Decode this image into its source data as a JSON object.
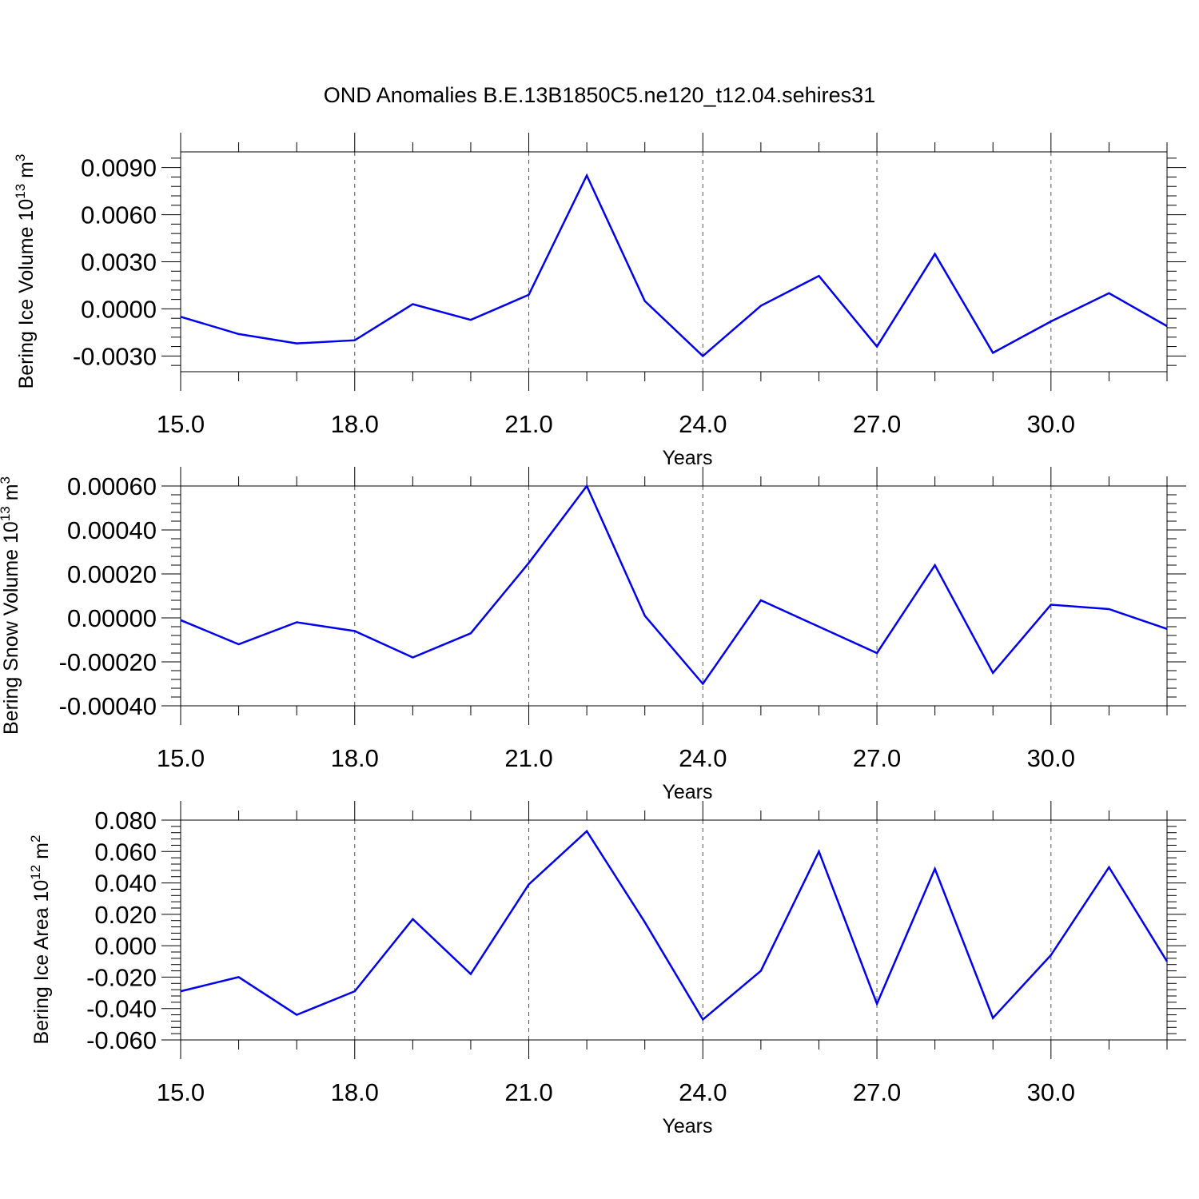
{
  "title": "OND Anomalies B.E.13B1850C5.ne120_t12.04.sehires31",
  "series_color": "#0000ee",
  "chart_data": [
    {
      "type": "line",
      "ylabel_main": "Bering Ice Volume 10",
      "ylabel_exp": "13",
      "ylabel_unit": " m",
      "ylabel_unit_exp": "3",
      "xlabel": "Years",
      "xlim": [
        15,
        32
      ],
      "ylim": [
        -0.004,
        0.01
      ],
      "xticks": [
        15,
        18,
        21,
        24,
        27,
        30
      ],
      "xtick_labels": [
        "15.0",
        "18.0",
        "21.0",
        "24.0",
        "27.0",
        "30.0"
      ],
      "yticks": [
        -0.003,
        0.0,
        0.003,
        0.006,
        0.009
      ],
      "ytick_labels": [
        "-0.0030",
        "0.0000",
        "0.0030",
        "0.0060",
        "0.0090"
      ],
      "grid": "dashed vertical at major x ticks",
      "x": [
        15,
        16,
        17,
        18,
        19,
        20,
        21,
        22,
        23,
        24,
        25,
        26,
        27,
        28,
        29,
        30,
        31,
        32
      ],
      "values": [
        -0.0005,
        -0.0016,
        -0.0022,
        -0.002,
        0.0003,
        -0.0007,
        0.0009,
        0.0085,
        0.0005,
        -0.003,
        0.0002,
        0.0021,
        -0.0024,
        0.0035,
        -0.0028,
        -0.0008,
        0.001,
        -0.0011
      ]
    },
    {
      "type": "line",
      "ylabel_main": "Bering Snow Volume 10",
      "ylabel_exp": "13",
      "ylabel_unit": " m",
      "ylabel_unit_exp": "3",
      "xlabel": "Years",
      "xlim": [
        15,
        32
      ],
      "ylim": [
        -0.0004,
        0.0006
      ],
      "xticks": [
        15,
        18,
        21,
        24,
        27,
        30
      ],
      "xtick_labels": [
        "15.0",
        "18.0",
        "21.0",
        "24.0",
        "27.0",
        "30.0"
      ],
      "yticks": [
        -0.0004,
        -0.0002,
        0.0,
        0.0002,
        0.0004,
        0.0006
      ],
      "ytick_labels": [
        "-0.00040",
        "-0.00020",
        "0.00000",
        "0.00020",
        "0.00040",
        "0.00060"
      ],
      "grid": "dashed vertical at major x ticks",
      "x": [
        15,
        16,
        17,
        18,
        19,
        20,
        21,
        22,
        23,
        24,
        25,
        26,
        27,
        28,
        29,
        30,
        31,
        32
      ],
      "values": [
        -1e-05,
        -0.00012,
        -2e-05,
        -6e-05,
        -0.00018,
        -7e-05,
        0.00025,
        0.0006,
        1e-05,
        -0.0003,
        8e-05,
        -4e-05,
        -0.00016,
        0.00024,
        -0.00025,
        6e-05,
        4e-05,
        -5e-05
      ]
    },
    {
      "type": "line",
      "ylabel_main": "Bering Ice Area 10",
      "ylabel_exp": "12",
      "ylabel_unit": " m",
      "ylabel_unit_exp": "2",
      "xlabel": "Years",
      "xlim": [
        15,
        32
      ],
      "ylim": [
        -0.06,
        0.08
      ],
      "xticks": [
        15,
        18,
        21,
        24,
        27,
        30
      ],
      "xtick_labels": [
        "15.0",
        "18.0",
        "21.0",
        "24.0",
        "27.0",
        "30.0"
      ],
      "yticks": [
        -0.06,
        -0.04,
        -0.02,
        0.0,
        0.02,
        0.04,
        0.06,
        0.08
      ],
      "ytick_labels": [
        "-0.060",
        "-0.040",
        "-0.020",
        "0.000",
        "0.020",
        "0.040",
        "0.060",
        "0.080"
      ],
      "grid": "dashed vertical at major x ticks",
      "x": [
        15,
        16,
        17,
        18,
        19,
        20,
        21,
        22,
        23,
        24,
        25,
        26,
        27,
        28,
        29,
        30,
        31,
        32
      ],
      "values": [
        -0.029,
        -0.02,
        -0.044,
        -0.029,
        0.017,
        -0.018,
        0.039,
        0.073,
        0.015,
        -0.047,
        -0.016,
        0.06,
        -0.037,
        0.049,
        -0.046,
        -0.006,
        0.05,
        -0.01
      ]
    }
  ]
}
